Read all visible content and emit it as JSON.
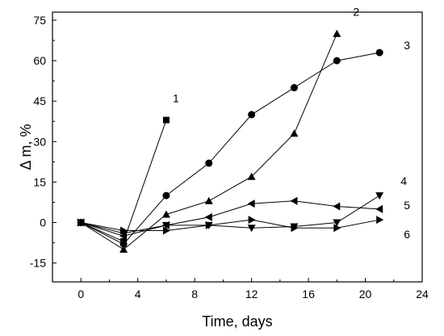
{
  "chart_data": {
    "type": "line",
    "xlabel": "Time, days",
    "ylabel": "Δ m, %",
    "xlim": [
      -2,
      24
    ],
    "ylim": [
      -22,
      78
    ],
    "x_ticks": [
      "0",
      "4",
      "8",
      "12",
      "16",
      "20",
      "24"
    ],
    "y_ticks": [
      "-15",
      "0",
      "15",
      "30",
      "45",
      "60",
      "75"
    ],
    "grid": false,
    "legend": "none",
    "series": [
      {
        "label": "1",
        "marker": "square",
        "x": [
          0,
          3,
          6
        ],
        "y": [
          0,
          -7,
          38
        ]
      },
      {
        "label": "2",
        "marker": "triangle-up",
        "x": [
          0,
          3,
          6,
          9,
          12,
          15,
          18
        ],
        "y": [
          0,
          -10,
          3,
          8,
          17,
          33,
          70
        ]
      },
      {
        "label": "3",
        "marker": "circle",
        "x": [
          0,
          3,
          6,
          9,
          12,
          15,
          18,
          21
        ],
        "y": [
          0,
          -8,
          10,
          22,
          40,
          50,
          60,
          63
        ]
      },
      {
        "label": "4",
        "marker": "triangle-down",
        "x": [
          0,
          3,
          6,
          9,
          12,
          15,
          18,
          21
        ],
        "y": [
          0,
          -4,
          -1,
          -1,
          -2,
          -1.5,
          0,
          10
        ]
      },
      {
        "label": "5",
        "marker": "triangle-left",
        "x": [
          0,
          3,
          6,
          9,
          12,
          15,
          18,
          21
        ],
        "y": [
          0,
          -5,
          -1,
          2,
          7,
          8,
          6,
          5
        ]
      },
      {
        "label": "6",
        "marker": "triangle-right",
        "x": [
          0,
          3,
          6,
          9,
          12,
          15,
          18,
          21
        ],
        "y": [
          0,
          -3,
          -3,
          -1,
          1,
          -2,
          -2,
          1
        ]
      }
    ]
  }
}
